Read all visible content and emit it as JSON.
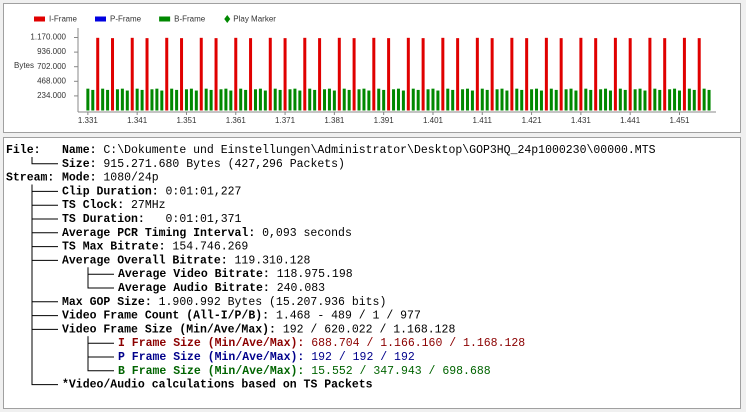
{
  "chart_data": {
    "type": "bar",
    "y_label": "Bytes",
    "xlim": [
      1329,
      1458
    ],
    "xticks": [
      {
        "value": 1331,
        "label": "1.331"
      },
      {
        "value": 1341,
        "label": "1.341"
      },
      {
        "value": 1351,
        "label": "1.351"
      },
      {
        "value": 1361,
        "label": "1.361"
      },
      {
        "value": 1371,
        "label": "1.371"
      },
      {
        "value": 1381,
        "label": "1.381"
      },
      {
        "value": 1391,
        "label": "1.391"
      },
      {
        "value": 1401,
        "label": "1.401"
      },
      {
        "value": 1411,
        "label": "1.411"
      },
      {
        "value": 1421,
        "label": "1.421"
      },
      {
        "value": 1431,
        "label": "1.431"
      },
      {
        "value": 1441,
        "label": "1.441"
      },
      {
        "value": 1451,
        "label": "1.451"
      }
    ],
    "ylim": [
      0,
      1300000
    ],
    "yticks": [
      {
        "value": 234000,
        "label": "234.000"
      },
      {
        "value": 468000,
        "label": "468.000"
      },
      {
        "value": 702000,
        "label": "702.000"
      },
      {
        "value": 936000,
        "label": "936.000"
      },
      {
        "value": 1170000,
        "label": "1.170.000"
      }
    ],
    "series": [
      {
        "name": "I-Frame",
        "color": "#e00000",
        "x": [
          1333,
          1336,
          1340,
          1343,
          1347,
          1350,
          1354,
          1357,
          1361,
          1364,
          1368,
          1371,
          1375,
          1378,
          1382,
          1385,
          1389,
          1392,
          1396,
          1399,
          1403,
          1406,
          1410,
          1413,
          1417,
          1420,
          1424,
          1427,
          1431,
          1434,
          1438,
          1441,
          1445,
          1448,
          1452,
          1455
        ],
        "values": [
          1165000,
          1160000,
          1165000,
          1160000,
          1165000,
          1160000,
          1165000,
          1160000,
          1165000,
          1160000,
          1165000,
          1160000,
          1165000,
          1160000,
          1165000,
          1160000,
          1165000,
          1160000,
          1165000,
          1160000,
          1165000,
          1160000,
          1165000,
          1160000,
          1165000,
          1160000,
          1165000,
          1160000,
          1165000,
          1160000,
          1165000,
          1160000,
          1165000,
          1160000,
          1165000,
          1160000
        ]
      },
      {
        "name": "P-Frame",
        "color": "#0000e0",
        "x": [],
        "values": []
      },
      {
        "name": "B-Frame",
        "color": "#008800",
        "x": [
          1331,
          1332,
          1334,
          1335,
          1337,
          1338,
          1339,
          1341,
          1342,
          1344,
          1345,
          1346,
          1348,
          1349,
          1351,
          1352,
          1353,
          1355,
          1356,
          1358,
          1359,
          1360,
          1362,
          1363,
          1365,
          1366,
          1367,
          1369,
          1370,
          1372,
          1373,
          1374,
          1376,
          1377,
          1379,
          1380,
          1381,
          1383,
          1384,
          1386,
          1387,
          1388,
          1390,
          1391,
          1393,
          1394,
          1395,
          1397,
          1398,
          1400,
          1401,
          1402,
          1404,
          1405,
          1407,
          1408,
          1409,
          1411,
          1412,
          1414,
          1415,
          1416,
          1418,
          1419,
          1421,
          1422,
          1423,
          1425,
          1426,
          1428,
          1429,
          1430,
          1432,
          1433,
          1435,
          1436,
          1437,
          1439,
          1440,
          1442,
          1443,
          1444,
          1446,
          1447,
          1449,
          1450,
          1451,
          1453,
          1454,
          1456,
          1457
        ],
        "values": [
          350000,
          330000,
          350000,
          330000,
          340000,
          350000,
          320000,
          350000,
          330000,
          340000,
          350000,
          320000,
          350000,
          330000,
          340000,
          350000,
          320000,
          350000,
          330000,
          340000,
          350000,
          320000,
          350000,
          330000,
          340000,
          350000,
          320000,
          350000,
          330000,
          340000,
          350000,
          320000,
          350000,
          330000,
          340000,
          350000,
          320000,
          350000,
          330000,
          340000,
          350000,
          320000,
          350000,
          330000,
          340000,
          350000,
          320000,
          350000,
          330000,
          340000,
          350000,
          320000,
          350000,
          330000,
          340000,
          350000,
          320000,
          350000,
          330000,
          340000,
          350000,
          320000,
          350000,
          330000,
          340000,
          350000,
          320000,
          350000,
          330000,
          340000,
          350000,
          320000,
          350000,
          330000,
          340000,
          350000,
          320000,
          350000,
          330000,
          340000,
          350000,
          320000,
          350000,
          330000,
          340000,
          350000,
          320000,
          350000,
          330000,
          350000,
          330000
        ]
      },
      {
        "name": "Play Marker",
        "color": "#008800",
        "marker": "diamond",
        "x": [],
        "values": []
      }
    ]
  },
  "tree": [
    {
      "label": "File:",
      "items": [
        {
          "label": "Name:",
          "value": "C:\\Dokumente und Einstellungen\\Administrator\\Desktop\\GOP3HQ_24p1000230\\00000.MTS"
        },
        {
          "label": "Size:",
          "value": "915.271.680 Bytes (427,296 Packets)"
        }
      ]
    },
    {
      "label": "Stream:",
      "items": [
        {
          "label": "Mode:",
          "value": "1080/24p"
        },
        {
          "label": "Clip Duration:",
          "value": "0:01:01,227"
        },
        {
          "label": "TS Clock:",
          "value": "27MHz"
        },
        {
          "label": "TS Duration:",
          "value": "  0:01:01,371"
        },
        {
          "label": "Average PCR Timing Interval:",
          "value": "0,093 seconds"
        },
        {
          "label": "TS Max Bitrate:",
          "value": "154.746.269"
        },
        {
          "label": "Average Overall Bitrate:",
          "value": "119.310.128",
          "items": [
            {
              "label": "Average Video Bitrate:",
              "value": "118.975.198"
            },
            {
              "label": "Average Audio Bitrate:",
              "value": "240.083"
            }
          ]
        },
        {
          "label": "Max GOP Size:",
          "value": "1.900.992 Bytes (15.207.936 bits)"
        },
        {
          "label": "Video Frame Count (All-I/P/B):",
          "value": "1.468 - 489 / 1 / 977"
        },
        {
          "label": "Video Frame Size (Min/Ave/Max):",
          "value": "192 / 620.022 / 1.168.128",
          "items": [
            {
              "label": "I Frame Size (Min/Ave/Max):",
              "value": "688.704 / 1.166.160 / 1.168.128",
              "color": "#8b0000"
            },
            {
              "label": "P Frame Size (Min/Ave/Max):",
              "value": "192 / 192 / 192",
              "color": "#00008b"
            },
            {
              "label": "B Frame Size (Min/Ave/Max):",
              "value": "15.552 / 347.943 / 698.688",
              "color": "#006400"
            }
          ]
        },
        {
          "label": "*Video/Audio calculations based on TS Packets"
        }
      ]
    }
  ]
}
